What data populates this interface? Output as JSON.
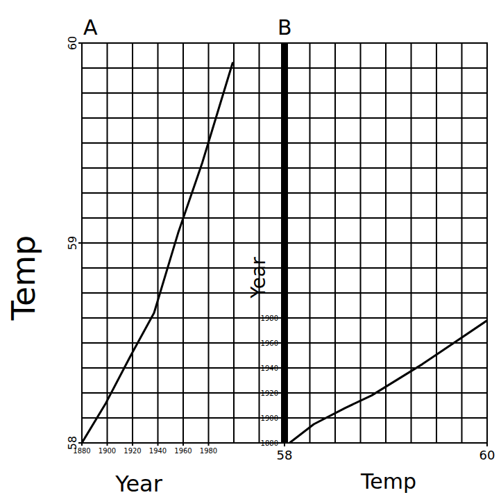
{
  "chart_data": [
    {
      "type": "line",
      "title": "A",
      "x_label": "Year",
      "y_label": "Temp",
      "x": [
        1880,
        1899,
        1918,
        1937,
        1956,
        1975,
        1999
      ],
      "values": [
        58,
        58.2,
        58.43,
        58.65,
        59.05,
        59.4,
        59.9
      ],
      "xlim": [
        1880,
        2040
      ],
      "xticks": [
        1880,
        1900,
        1920,
        1940,
        1960,
        1980
      ],
      "ylim": [
        58,
        60
      ],
      "yticks": [
        58,
        59,
        60
      ],
      "grid": true,
      "color": "#000000"
    },
    {
      "type": "line",
      "title": "B",
      "x_label": "Temp",
      "y_label": "Year",
      "x": [
        58.05,
        58.29,
        58.6,
        58.86,
        59.36,
        60
      ],
      "values": [
        1880,
        1895,
        1908,
        1918,
        1943,
        1978
      ],
      "xlim": [
        58,
        60
      ],
      "xticks": [
        58,
        60
      ],
      "ylim": [
        1880,
        2200
      ],
      "yticks": [
        1880,
        1900,
        1920,
        1940,
        1960,
        1980
      ],
      "grid": true,
      "color": "#000000"
    }
  ]
}
